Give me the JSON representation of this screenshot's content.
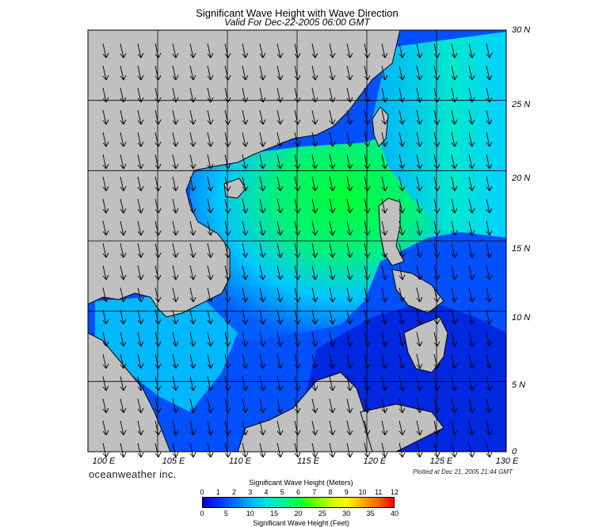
{
  "title": "Significant Wave Height with Wave Direction",
  "subtitle": "Valid For Dec-22-2005 06:00 GMT",
  "lat_labels": [
    "30 N",
    "25 N",
    "20 N",
    "15 N",
    "10 N",
    "5 N",
    "0"
  ],
  "lon_labels": [
    "100 E",
    "105 E",
    "110 E",
    "115 E",
    "120 E",
    "125 E",
    "130 E"
  ],
  "branding": "oceanweather inc.",
  "plotted_at": "Plotted at Dec 21, 2005 21:44 GMT",
  "colorbar": {
    "meters_title": "Significant Wave Height (Meters)",
    "meters_ticks": [
      "0",
      "1",
      "2",
      "3",
      "4",
      "5",
      "6",
      "7",
      "8",
      "9",
      "10",
      "11",
      "12"
    ],
    "feet_title": "Significant Wave Height (Feet)",
    "feet_ticks": [
      "0",
      "5",
      "10",
      "15",
      "20",
      "25",
      "30",
      "35",
      "40"
    ]
  },
  "colors": {
    "land": "#c0c0c0",
    "low_wave": "#0040ff",
    "mid_wave": "#00e0e0",
    "high_wave": "#00ff40"
  },
  "map_extent": {
    "lon": [
      100,
      130
    ],
    "lat": [
      0,
      30
    ]
  },
  "wave_direction": "arrows pointing predominantly south-southwest"
}
